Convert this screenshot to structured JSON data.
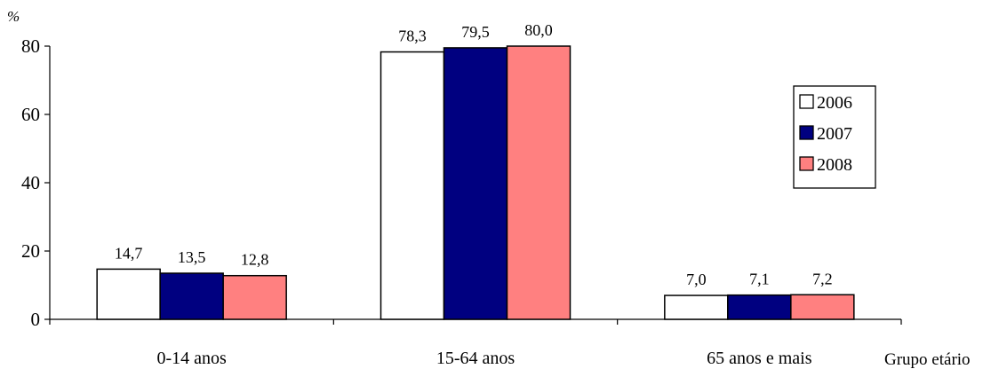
{
  "chart_data": {
    "type": "bar",
    "title": "",
    "ylabel": "%",
    "xlabel": "Grupo etário",
    "ylim": [
      0,
      80
    ],
    "yticks": [
      0,
      20,
      40,
      60,
      80
    ],
    "categories": [
      "0-14 anos",
      "15-64 anos",
      "65 anos e mais"
    ],
    "series": [
      {
        "name": "2006",
        "color": "#ffffff",
        "values": [
          14.7,
          78.3,
          7.0
        ],
        "labels": [
          "14,7",
          "78,3",
          "7,0"
        ]
      },
      {
        "name": "2007",
        "color": "#000080",
        "values": [
          13.5,
          79.5,
          7.1
        ],
        "labels": [
          "13,5",
          "79,5",
          "7,1"
        ]
      },
      {
        "name": "2008",
        "color": "#ff8080",
        "values": [
          12.8,
          80.0,
          7.2
        ],
        "labels": [
          "12,8",
          "80,0",
          "7,2"
        ]
      }
    ],
    "legend_position": "right",
    "grid": false
  }
}
